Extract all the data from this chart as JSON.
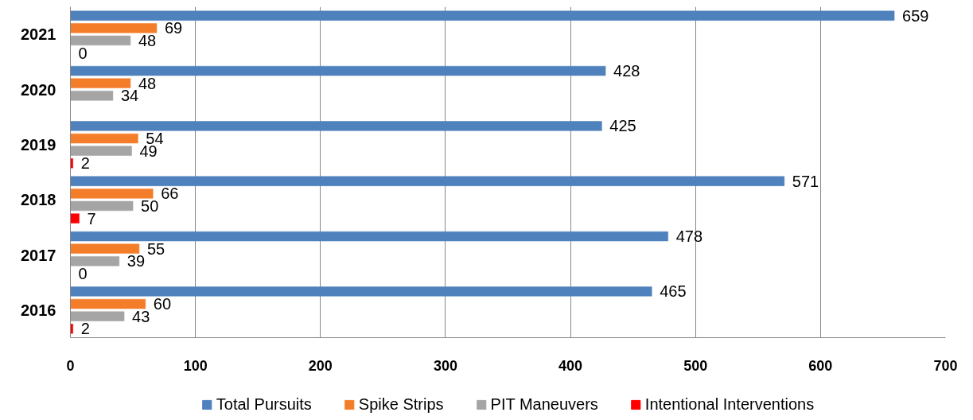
{
  "chart_data": {
    "type": "bar",
    "orientation": "horizontal",
    "categories": [
      "2021",
      "2020",
      "2019",
      "2018",
      "2017",
      "2016"
    ],
    "series": [
      {
        "name": "Total Pursuits",
        "color": "#4f81bd",
        "values": [
          659,
          428,
          425,
          571,
          478,
          465
        ],
        "value_labels": [
          "659",
          "428",
          "425",
          "571",
          "478",
          "465"
        ]
      },
      {
        "name": "Spike Strips",
        "color": "#f47d2a",
        "values": [
          69,
          48,
          54,
          66,
          55,
          60
        ],
        "value_labels": [
          "69",
          "48",
          "54",
          "66",
          "55",
          "60"
        ]
      },
      {
        "name": "PIT Maneuvers",
        "color": "#a5a5a5",
        "values": [
          48,
          34,
          49,
          50,
          39,
          43
        ],
        "value_labels": [
          "48",
          "34",
          "49",
          "50",
          "39",
          "43"
        ]
      },
      {
        "name": "Intentional Interventions",
        "color": "#ff0000",
        "values": [
          0,
          null,
          2,
          7,
          0,
          2
        ],
        "value_labels": [
          "0",
          null,
          "2",
          "7",
          "0",
          "2"
        ]
      }
    ],
    "xlim": [
      0,
      700
    ],
    "xticks": [
      0,
      100,
      200,
      300,
      400,
      500,
      600,
      700
    ],
    "grid": "x",
    "legend": "bottom"
  }
}
